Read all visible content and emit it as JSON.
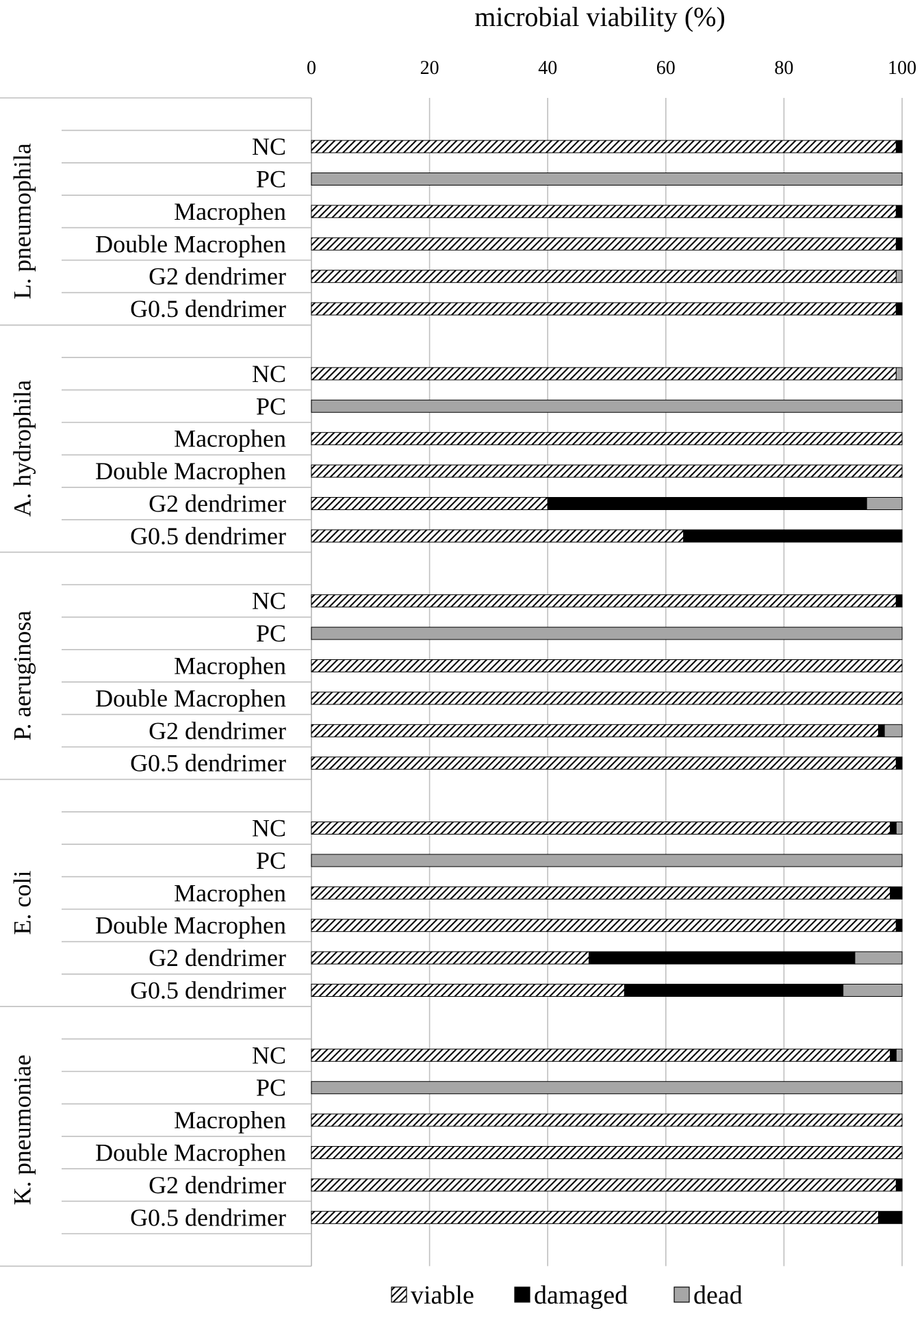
{
  "chart_data": {
    "type": "bar",
    "orientation": "horizontal",
    "stacked": true,
    "title": "",
    "xlabel": "microbial viability (%)",
    "xlim": [
      0,
      100
    ],
    "xticks": [
      0,
      20,
      40,
      60,
      80,
      100
    ],
    "grid": true,
    "legend_placement": "bottom",
    "series": [
      {
        "name": "viable",
        "pattern": "diagonal-hatch",
        "color": "#000000"
      },
      {
        "name": "damaged",
        "pattern": "solid",
        "color": "#000000"
      },
      {
        "name": "dead",
        "pattern": "solid",
        "color": "#a6a6a6"
      }
    ],
    "groups": [
      {
        "name": "L. pneumophila",
        "categories": [
          "NC",
          "PC",
          "Macrophen",
          "Double Macrophen",
          "G2 dendrimer",
          "G0.5 dendrimer"
        ],
        "viable": [
          99,
          0,
          99,
          99,
          99,
          99
        ],
        "damaged": [
          1,
          0,
          1,
          1,
          0,
          1
        ],
        "dead": [
          0,
          100,
          0,
          0,
          1,
          0
        ]
      },
      {
        "name": "A. hydrophila",
        "categories": [
          "NC",
          "PC",
          "Macrophen",
          "Double Macrophen",
          "G2 dendrimer",
          "G0.5 dendrimer"
        ],
        "viable": [
          99,
          0,
          100,
          100,
          40,
          63
        ],
        "damaged": [
          0,
          0,
          0,
          0,
          54,
          37
        ],
        "dead": [
          1,
          100,
          0,
          0,
          6,
          0
        ]
      },
      {
        "name": "P. aeruginosa",
        "categories": [
          "NC",
          "PC",
          "Macrophen",
          "Double Macrophen",
          "G2 dendrimer",
          "G0.5 dendrimer"
        ],
        "viable": [
          99,
          0,
          100,
          100,
          96,
          99
        ],
        "damaged": [
          1,
          0,
          0,
          0,
          1,
          1
        ],
        "dead": [
          0,
          100,
          0,
          0,
          3,
          0
        ]
      },
      {
        "name": "E. coli",
        "categories": [
          "NC",
          "PC",
          "Macrophen",
          "Double Macrophen",
          "G2 dendrimer",
          "G0.5 dendrimer"
        ],
        "viable": [
          98,
          0,
          98,
          99,
          47,
          53
        ],
        "damaged": [
          1,
          0,
          2,
          1,
          45,
          37
        ],
        "dead": [
          1,
          100,
          0,
          0,
          8,
          10
        ]
      },
      {
        "name": "K. pneumoniae",
        "categories": [
          "NC",
          "PC",
          "Macrophen",
          "Double Macrophen",
          "G2 dendrimer",
          "G0.5 dendrimer"
        ],
        "viable": [
          98,
          0,
          100,
          100,
          99,
          96
        ],
        "damaged": [
          1,
          0,
          0,
          0,
          1,
          4
        ],
        "dead": [
          1,
          100,
          0,
          0,
          0,
          0
        ]
      }
    ]
  }
}
